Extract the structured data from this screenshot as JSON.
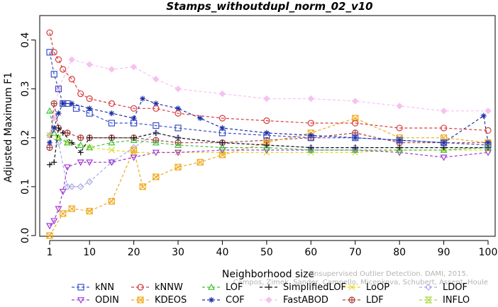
{
  "chart_data": {
    "type": "line",
    "title": "Stamps_withoutdupl_norm_02_v10",
    "xlabel": "Neighborhood size",
    "ylabel": "Adjusted Maximum F1",
    "xlim": [
      1,
      100
    ],
    "ylim": [
      0.0,
      0.45
    ],
    "x_ticks": [
      1,
      10,
      20,
      30,
      40,
      50,
      60,
      70,
      80,
      90,
      100
    ],
    "y_ticks": [
      0.0,
      0.1,
      0.2,
      0.3,
      0.4
    ],
    "y_tick_labels": [
      "0.0",
      "0.1",
      "0.2",
      "0.3",
      "0.4"
    ],
    "grid": false,
    "legend_position": "bottom",
    "watermark": [
      "Campos, Zimek, Sander, Campello, Micenkova, Schubert, Assent, Houle",
      "Unsupervised Outlier Detection. DAMI, 2015."
    ],
    "series": [
      {
        "name": "kNN",
        "color": "#3b4fc7",
        "marker": "square",
        "x": [
          1,
          2,
          3,
          4,
          5,
          7,
          10,
          15,
          20,
          25,
          30,
          40,
          50,
          60,
          70,
          80,
          90,
          100
        ],
        "y": [
          0.375,
          0.33,
          0.3,
          0.27,
          0.27,
          0.26,
          0.25,
          0.23,
          0.23,
          0.225,
          0.22,
          0.21,
          0.205,
          0.2,
          0.2,
          0.195,
          0.19,
          0.185
        ]
      },
      {
        "name": "kNNW",
        "color": "#d93a3a",
        "marker": "circle",
        "x": [
          1,
          2,
          3,
          4,
          6,
          8,
          10,
          15,
          20,
          25,
          30,
          40,
          50,
          60,
          70,
          80,
          90,
          100
        ],
        "y": [
          0.415,
          0.375,
          0.36,
          0.34,
          0.32,
          0.29,
          0.28,
          0.27,
          0.26,
          0.26,
          0.25,
          0.24,
          0.235,
          0.23,
          0.23,
          0.22,
          0.22,
          0.215
        ]
      },
      {
        "name": "LOF",
        "color": "#3cc43c",
        "marker": "triangle-up",
        "x": [
          1,
          2,
          3,
          5,
          8,
          10,
          15,
          20,
          25,
          30,
          40,
          50,
          60,
          70,
          80,
          90,
          100
        ],
        "y": [
          0.255,
          0.21,
          0.2,
          0.19,
          0.185,
          0.18,
          0.19,
          0.195,
          0.19,
          0.185,
          0.18,
          0.18,
          0.175,
          0.175,
          0.175,
          0.175,
          0.18
        ]
      },
      {
        "name": "SimplifiedLOF",
        "color": "#111111",
        "marker": "plus",
        "x": [
          1,
          2,
          3,
          4,
          6,
          8,
          10,
          15,
          20,
          25,
          30,
          40,
          50,
          60,
          70,
          80,
          90,
          100
        ],
        "y": [
          0.145,
          0.15,
          0.22,
          0.21,
          0.19,
          0.17,
          0.2,
          0.2,
          0.2,
          0.21,
          0.2,
          0.19,
          0.185,
          0.18,
          0.18,
          0.18,
          0.18,
          0.18
        ]
      },
      {
        "name": "LoOP",
        "color": "#e0d81f",
        "marker": "x",
        "x": [
          1,
          3,
          5,
          10,
          15,
          20,
          30,
          40,
          50,
          60,
          70,
          80,
          90,
          100
        ],
        "y": [
          0.205,
          0.2,
          0.19,
          0.18,
          0.175,
          0.17,
          0.17,
          0.17,
          0.17,
          0.17,
          0.17,
          0.175,
          0.175,
          0.175
        ]
      },
      {
        "name": "LDOF",
        "color": "#a9a9e6",
        "marker": "diamond",
        "x": [
          1,
          3,
          5,
          6,
          8,
          10,
          15,
          20,
          25,
          30,
          40,
          50,
          60,
          70,
          80,
          90,
          100
        ],
        "y": [
          0.205,
          0.19,
          0.1,
          0.1,
          0.1,
          0.11,
          0.15,
          0.18,
          0.21,
          0.2,
          0.19,
          0.185,
          0.18,
          0.18,
          0.18,
          0.18,
          0.18
        ]
      },
      {
        "name": "ODIN",
        "color": "#a13ad6",
        "marker": "triangle-down",
        "x": [
          1,
          2,
          3,
          4,
          5,
          8,
          10,
          15,
          20,
          25,
          30,
          40,
          50,
          60,
          70,
          80,
          90,
          100
        ],
        "y": [
          0.02,
          0.03,
          0.055,
          0.09,
          0.14,
          0.15,
          0.15,
          0.15,
          0.16,
          0.17,
          0.17,
          0.175,
          0.175,
          0.175,
          0.175,
          0.17,
          0.16,
          0.17
        ]
      },
      {
        "name": "KDEOS",
        "color": "#f0a91c",
        "marker": "square-x",
        "x": [
          1,
          4,
          6,
          10,
          15,
          20,
          22,
          25,
          30,
          35,
          40,
          50,
          60,
          70,
          80,
          90,
          100
        ],
        "y": [
          0.0,
          0.045,
          0.055,
          0.05,
          0.07,
          0.175,
          0.1,
          0.12,
          0.14,
          0.15,
          0.165,
          0.19,
          0.21,
          0.24,
          0.2,
          0.2,
          0.19
        ]
      },
      {
        "name": "COF",
        "color": "#1c2fa8",
        "marker": "asterisk",
        "x": [
          1,
          2,
          3,
          4,
          6,
          10,
          15,
          20,
          22,
          25,
          30,
          35,
          40,
          50,
          60,
          70,
          80,
          90,
          99,
          100
        ],
        "y": [
          0.19,
          0.22,
          0.25,
          0.27,
          0.27,
          0.26,
          0.25,
          0.24,
          0.28,
          0.27,
          0.26,
          0.24,
          0.22,
          0.21,
          0.205,
          0.2,
          0.195,
          0.19,
          0.245,
          0.19
        ]
      },
      {
        "name": "FastABOD",
        "color": "#f5c2f0",
        "marker": "diamond-filled",
        "x": [
          1,
          2,
          3,
          6,
          10,
          15,
          20,
          25,
          30,
          40,
          50,
          60,
          70,
          80,
          90,
          100
        ],
        "y": [
          0.205,
          0.24,
          0.3,
          0.36,
          0.35,
          0.34,
          0.345,
          0.32,
          0.3,
          0.29,
          0.28,
          0.28,
          0.275,
          0.265,
          0.255,
          0.255
        ]
      },
      {
        "name": "LDF",
        "color": "#a84040",
        "marker": "circle-plus",
        "x": [
          1,
          2,
          3,
          5,
          8,
          10,
          15,
          20,
          25,
          30,
          40,
          50,
          60,
          70,
          80,
          90,
          100
        ],
        "y": [
          0.18,
          0.27,
          0.22,
          0.21,
          0.2,
          0.2,
          0.2,
          0.2,
          0.195,
          0.19,
          0.19,
          0.195,
          0.2,
          0.21,
          0.19,
          0.19,
          0.19
        ]
      },
      {
        "name": "INFLO",
        "color": "#a6d63a",
        "marker": "hourglass",
        "x": [
          1,
          2,
          4,
          6,
          8,
          10,
          15,
          20,
          25,
          30,
          40,
          50,
          60,
          70,
          80,
          90,
          100
        ],
        "y": [
          0.21,
          0.2,
          0.19,
          0.18,
          0.12,
          0.12,
          0.16,
          0.16,
          0.17,
          0.16,
          0.165,
          0.16,
          0.165,
          0.17,
          0.17,
          0.17,
          0.175
        ]
      }
    ]
  }
}
